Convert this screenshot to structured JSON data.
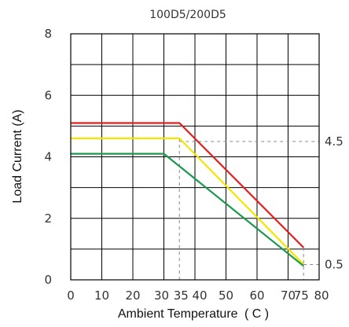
{
  "chart_data": {
    "type": "line",
    "title": "100D5/200D5",
    "xlabel": "Ambient Temperature",
    "xlabel_unit": "( C )",
    "ylabel": "Load Current (A)",
    "xlim": [
      0,
      80
    ],
    "ylim": [
      0,
      8
    ],
    "x_ticks": [
      "0",
      "10",
      "20",
      "30",
      "35",
      "40",
      "50",
      "60",
      "70",
      "75",
      "80"
    ],
    "x_tick_values": [
      0,
      10,
      20,
      30,
      35,
      40,
      50,
      60,
      70,
      75,
      80
    ],
    "y_ticks": [
      "0",
      "2",
      "4",
      "6",
      "8"
    ],
    "y_tick_values": [
      0,
      2,
      4,
      6,
      8
    ],
    "grid": true,
    "grid_x": [
      0,
      10,
      20,
      30,
      40,
      50,
      60,
      70,
      80
    ],
    "grid_y": [
      0,
      1,
      2,
      3,
      4,
      5,
      6,
      7,
      8
    ],
    "series": [
      {
        "color": "#e02020",
        "points": [
          [
            0,
            5.1
          ],
          [
            35,
            5.1
          ],
          [
            75,
            1.05
          ]
        ]
      },
      {
        "color": "#f2e600",
        "points": [
          [
            0,
            4.6
          ],
          [
            35,
            4.6
          ],
          [
            75,
            0.5
          ]
        ]
      },
      {
        "color": "#1a9a4a",
        "points": [
          [
            0,
            4.1
          ],
          [
            30,
            4.1
          ],
          [
            75,
            0.45
          ]
        ]
      }
    ],
    "reference_lines": [
      {
        "orientation": "horizontal",
        "value": 4.5,
        "x_from": 35,
        "label": "4.5"
      },
      {
        "orientation": "horizontal",
        "value": 0.5,
        "x_from": 75,
        "label": "0.5"
      },
      {
        "orientation": "vertical",
        "value": 35,
        "y_to": 4.6
      },
      {
        "orientation": "vertical",
        "value": 75,
        "y_to": 1.05
      }
    ]
  }
}
